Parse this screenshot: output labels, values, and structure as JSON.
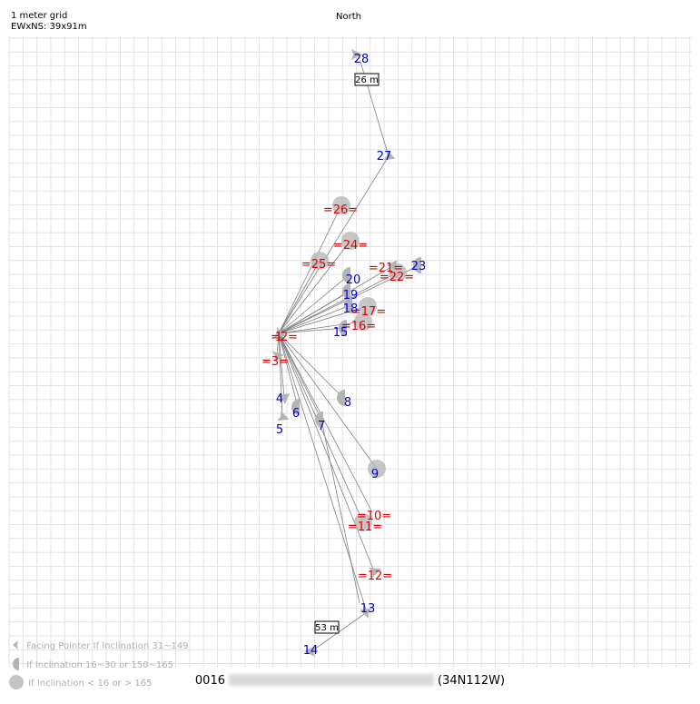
{
  "header": {
    "grid_label": "1 meter grid",
    "size_label": "EWxNS: 39x91m",
    "north_label": "North"
  },
  "legend": {
    "items": [
      {
        "icon": "facing-pointer-icon",
        "label": "Facing Pointer If Inclination 31~149"
      },
      {
        "icon": "half-disc-icon",
        "label": "If Inclination 16~30 or 150~165"
      },
      {
        "icon": "disc-icon",
        "label": "If Inclination < 16 or > 165"
      }
    ]
  },
  "footer": {
    "code": "0016",
    "region": "(34N112W)"
  },
  "colors": {
    "grid": "#e2e2e2",
    "line": "#808080",
    "marker": "#b4b4b4",
    "label_blue": "#0000cc",
    "label_red": "#dd0000"
  },
  "distances": [
    {
      "label": "26 m"
    },
    {
      "label": "53 m"
    }
  ],
  "stations": [
    {
      "id": "28",
      "label": "28",
      "style": "blue",
      "marker": "pointer"
    },
    {
      "id": "27",
      "label": "27",
      "style": "blue",
      "marker": "pointer"
    },
    {
      "id": "26",
      "label": "=26=",
      "style": "red",
      "marker": "disc"
    },
    {
      "id": "24",
      "label": "=24=",
      "style": "red",
      "marker": "disc"
    },
    {
      "id": "25",
      "label": "=25=",
      "style": "red",
      "marker": "disc"
    },
    {
      "id": "21",
      "label": "=21=",
      "style": "red",
      "marker": "pointer"
    },
    {
      "id": "23",
      "label": "23",
      "style": "blue",
      "marker": "half"
    },
    {
      "id": "22",
      "label": "=22=",
      "style": "red",
      "marker": "disc"
    },
    {
      "id": "20",
      "label": "20",
      "style": "blue",
      "marker": "half"
    },
    {
      "id": "19",
      "label": "19",
      "style": "blue",
      "marker": "half"
    },
    {
      "id": "18",
      "label": "18",
      "style": "blue",
      "marker": "half"
    },
    {
      "id": "17",
      "label": "=17=",
      "style": "red",
      "marker": "disc"
    },
    {
      "id": "16",
      "label": "=16=",
      "style": "red",
      "marker": "disc"
    },
    {
      "id": "15",
      "label": "15",
      "style": "blue",
      "marker": "half"
    },
    {
      "id": "2",
      "label": "=2=",
      "style": "red",
      "marker": "pointer"
    },
    {
      "id": "1",
      "label": "1",
      "style": "red",
      "marker": "none"
    },
    {
      "id": "3",
      "label": "=3=",
      "style": "red",
      "marker": "pointer"
    },
    {
      "id": "4",
      "label": "4",
      "style": "blue",
      "marker": "pointer"
    },
    {
      "id": "8",
      "label": "8",
      "style": "blue",
      "marker": "half"
    },
    {
      "id": "6",
      "label": "6",
      "style": "blue",
      "marker": "half"
    },
    {
      "id": "5",
      "label": "5",
      "style": "blue",
      "marker": "pointer"
    },
    {
      "id": "7",
      "label": "7",
      "style": "blue",
      "marker": "half"
    },
    {
      "id": "9",
      "label": "9",
      "style": "blue",
      "marker": "disc"
    },
    {
      "id": "10",
      "label": "=10=",
      "style": "red",
      "marker": "none"
    },
    {
      "id": "11",
      "label": "=11=",
      "style": "red",
      "marker": "disc"
    },
    {
      "id": "12",
      "label": "=12=",
      "style": "red",
      "marker": "pointer"
    },
    {
      "id": "13",
      "label": "13",
      "style": "blue",
      "marker": "pointer"
    },
    {
      "id": "14",
      "label": "14",
      "style": "blue",
      "marker": "pointer"
    }
  ]
}
